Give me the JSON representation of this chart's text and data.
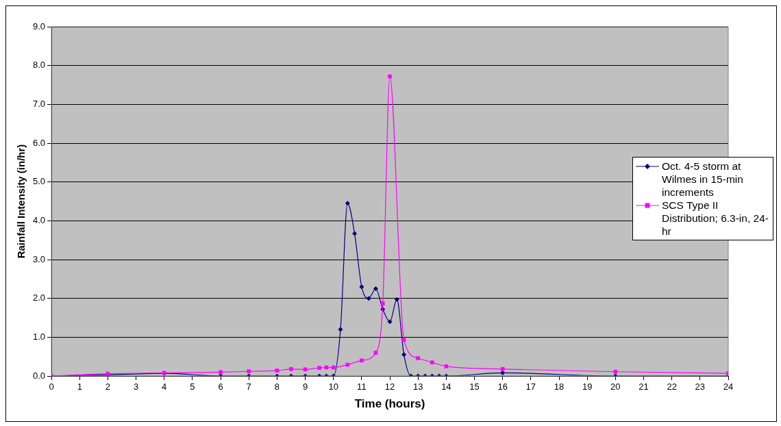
{
  "chart_data": {
    "type": "line",
    "xlabel": "Time (hours)",
    "ylabel": "Rainfall Intensity (in/hr)",
    "xlim": [
      0,
      24
    ],
    "xticks": [
      0,
      1,
      2,
      3,
      4,
      5,
      6,
      7,
      8,
      9,
      10,
      11,
      12,
      13,
      14,
      15,
      16,
      17,
      18,
      19,
      20,
      21,
      22,
      23,
      24
    ],
    "ylim": [
      0,
      9
    ],
    "yticks": [
      {
        "value": 0,
        "label": "0.0"
      },
      {
        "value": 1,
        "label": "1.0"
      },
      {
        "value": 2,
        "label": "2.0"
      },
      {
        "value": 3,
        "label": "3.0"
      },
      {
        "value": 4,
        "label": "4.0"
      },
      {
        "value": 5,
        "label": "5.0"
      },
      {
        "value": 6,
        "label": "6.0"
      },
      {
        "value": 7,
        "label": "7.0"
      },
      {
        "value": 8,
        "label": "8.0"
      },
      {
        "value": 9,
        "label": "9.0"
      }
    ],
    "grid": "y",
    "legend": "right",
    "series": [
      {
        "name": "Oct. 4-5 storm at Wilmes in 15-min increments",
        "color": "#000080",
        "marker": "diamond",
        "x": [
          0,
          2,
          4,
          6,
          7,
          8,
          8.5,
          9,
          9.5,
          9.75,
          10,
          10.25,
          10.5,
          10.75,
          11,
          11.25,
          11.5,
          11.75,
          12,
          12.25,
          12.5,
          12.75,
          13,
          13.25,
          13.5,
          13.75,
          14,
          16,
          20,
          24
        ],
        "values": [
          0,
          0.03,
          0.07,
          0,
          0,
          0,
          0,
          0,
          0,
          0,
          0,
          1.2,
          4.45,
          3.67,
          2.3,
          2.0,
          2.25,
          1.72,
          1.4,
          1.97,
          0.55,
          0,
          0,
          0,
          0,
          0,
          0,
          0.08,
          0,
          0
        ]
      },
      {
        "name": "SCS Type II Distribution; 6.3-in, 24-hr",
        "color": "#ff00ff",
        "marker": "square",
        "x": [
          0,
          2,
          4,
          6,
          7,
          8,
          8.5,
          9,
          9.5,
          9.75,
          10,
          10.5,
          11,
          11.5,
          11.75,
          12,
          12.5,
          13,
          13.5,
          14,
          16,
          20,
          24
        ],
        "values": [
          0,
          0.06,
          0.08,
          0.1,
          0.12,
          0.14,
          0.18,
          0.17,
          0.21,
          0.22,
          0.22,
          0.29,
          0.4,
          0.6,
          1.87,
          7.72,
          0.93,
          0.46,
          0.35,
          0.25,
          0.18,
          0.11,
          0.07
        ]
      }
    ]
  }
}
